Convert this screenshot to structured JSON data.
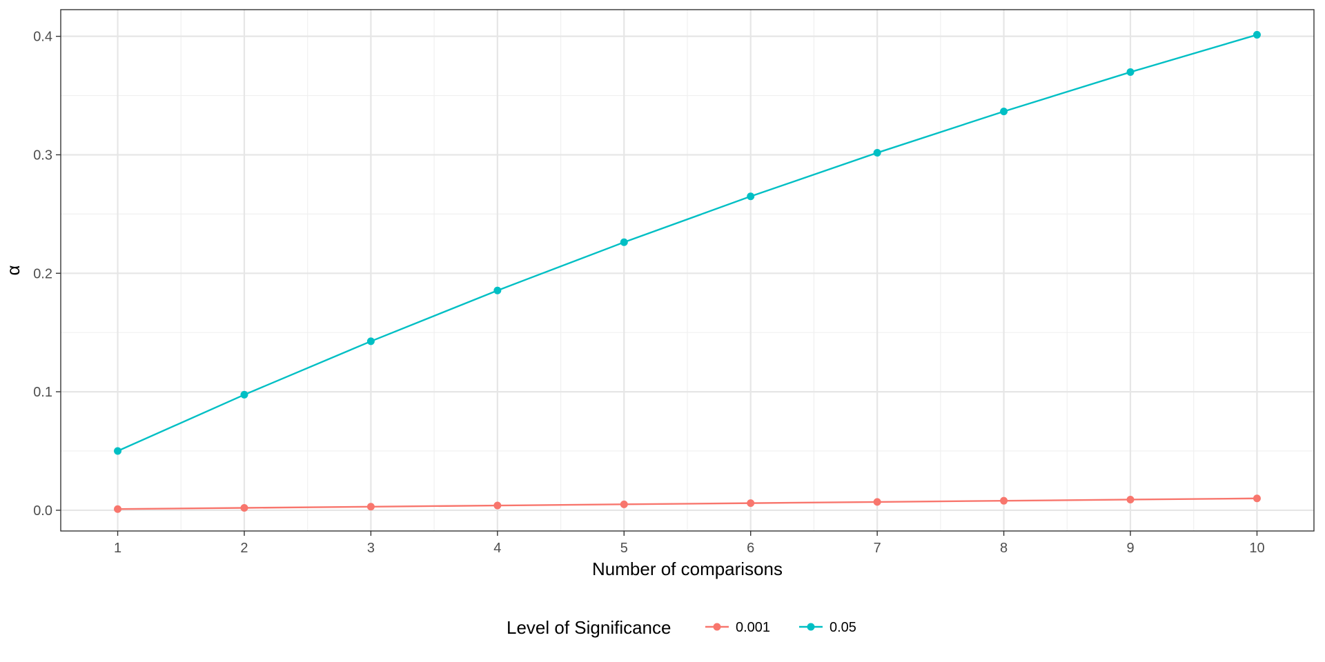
{
  "chart_data": {
    "type": "line",
    "xlabel": "Number of comparisons",
    "ylabel": "α",
    "x": [
      1,
      2,
      3,
      4,
      5,
      6,
      7,
      8,
      9,
      10
    ],
    "xlim": [
      0.55,
      10.45
    ],
    "ylim": [
      -0.0175,
      0.4225
    ],
    "x_ticks": [
      "1",
      "2",
      "3",
      "4",
      "5",
      "6",
      "7",
      "8",
      "9",
      "10"
    ],
    "y_ticks": [
      "0.0",
      "0.1",
      "0.2",
      "0.3",
      "0.4"
    ],
    "y_tick_values": [
      0.0,
      0.1,
      0.2,
      0.3,
      0.4
    ],
    "grid": true,
    "legend_title": "Level of Significance",
    "legend_position": "bottom",
    "series": [
      {
        "name": "0.001",
        "color": "#F8766D",
        "values": [
          0.001,
          0.002,
          0.003,
          0.004,
          0.005,
          0.006,
          0.007,
          0.008,
          0.009,
          0.01
        ]
      },
      {
        "name": "0.05",
        "color": "#00BFC4",
        "values": [
          0.05,
          0.0975,
          0.1426,
          0.1855,
          0.2262,
          0.2649,
          0.3017,
          0.3366,
          0.3698,
          0.4013
        ]
      }
    ]
  }
}
